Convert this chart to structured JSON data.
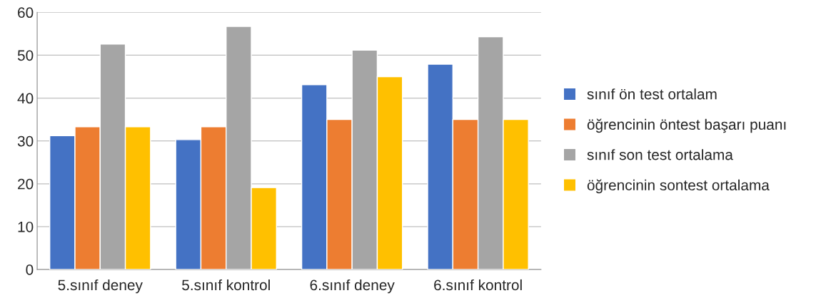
{
  "chart_data": {
    "type": "bar",
    "categories": [
      "5.sınıf deney",
      "5.sınıf kontrol",
      "6.sınıf deney",
      "6.sınıf kontrol"
    ],
    "series": [
      {
        "name": "sınıf ön test ortalam",
        "color": "#4472c4",
        "values": [
          31.2,
          30.3,
          43.1,
          47.9
        ]
      },
      {
        "name": "öğrencinin öntest başarı puanı",
        "color": "#ed7d31",
        "values": [
          33.3,
          33.3,
          35,
          35
        ]
      },
      {
        "name": "sınıf son test ortalama",
        "color": "#a5a5a5",
        "values": [
          52.6,
          56.7,
          51.2,
          54.3
        ]
      },
      {
        "name": "öğrencinin sontest ortalama",
        "color": "#ffc000",
        "values": [
          33.3,
          19.1,
          45,
          35
        ]
      }
    ],
    "ylim": [
      0,
      60
    ],
    "yticks": [
      0,
      10,
      20,
      30,
      40,
      50,
      60
    ],
    "grid": "y",
    "legend": "right"
  }
}
